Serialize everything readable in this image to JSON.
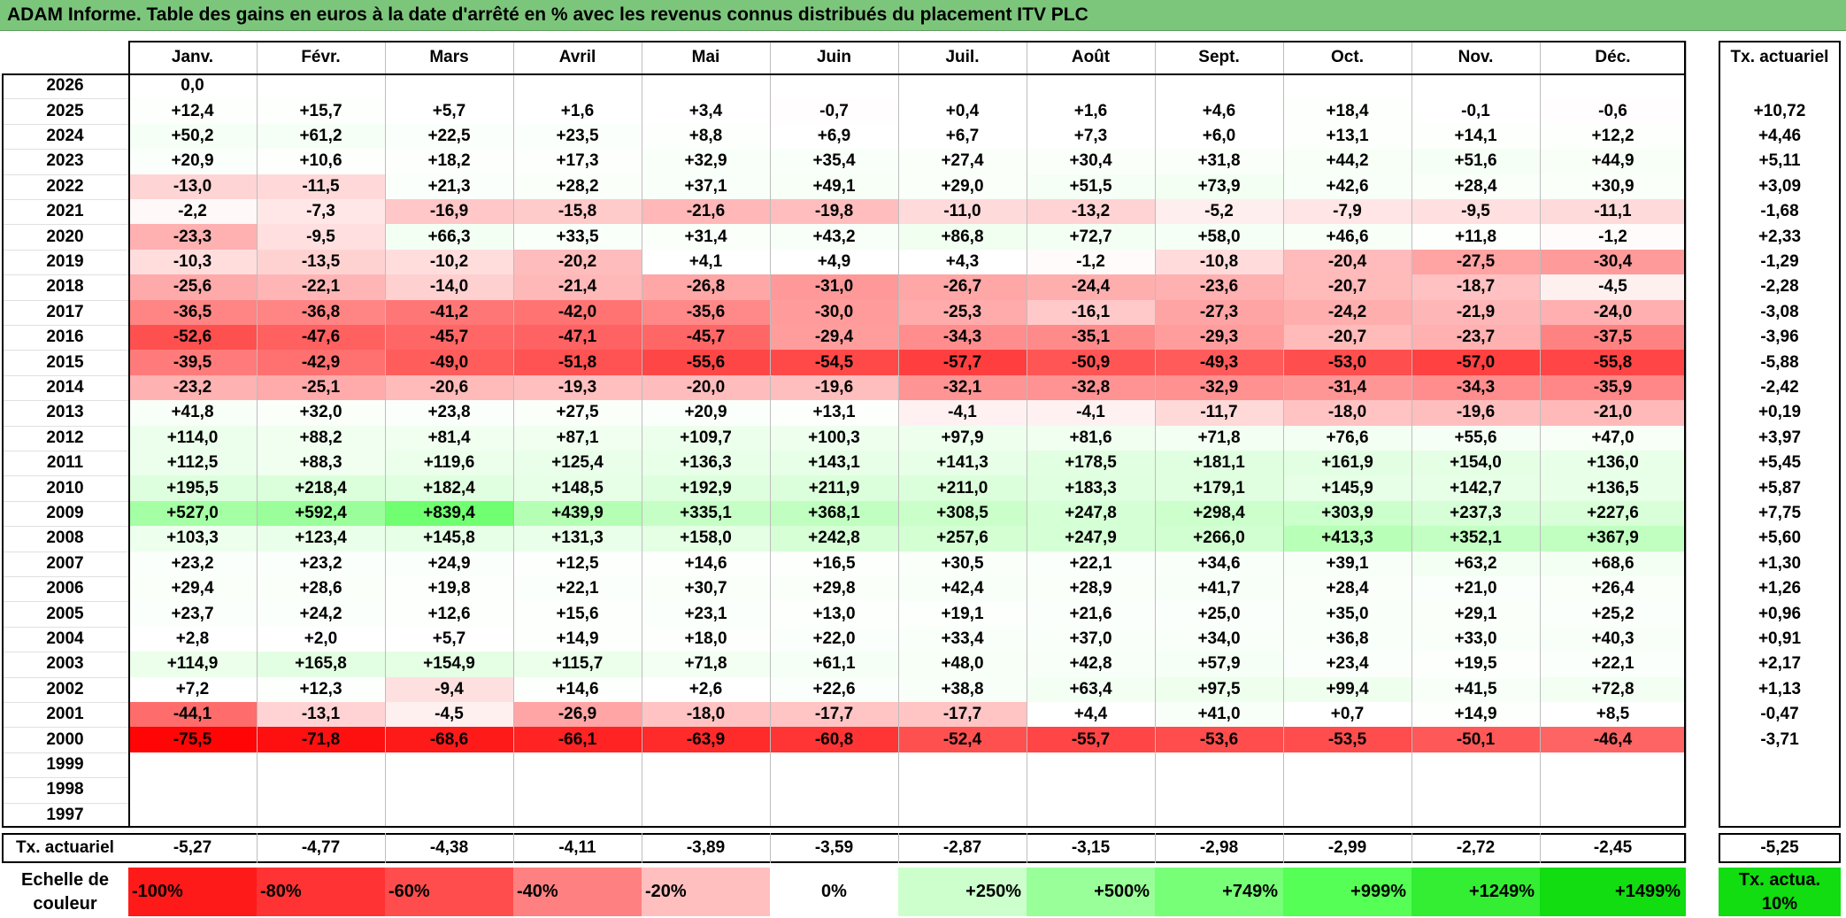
{
  "title": "ADAM Informe. Table des gains en euros à la date d'arrêté en % avec les revenus connus distribués du placement ITV PLC",
  "months": [
    "Janv.",
    "Févr.",
    "Mars",
    "Avril",
    "Mai",
    "Juin",
    "Juil.",
    "Août",
    "Sept.",
    "Oct.",
    "Nov.",
    "Déc."
  ],
  "rate_header": "Tx. actuariel",
  "rows": [
    {
      "year": "2026",
      "values": [
        "0,0",
        "",
        "",
        "",
        "",
        "",
        "",
        "",
        "",
        "",
        "",
        ""
      ],
      "rate": ""
    },
    {
      "year": "2025",
      "values": [
        "+12,4",
        "+15,7",
        "+5,7",
        "+1,6",
        "+3,4",
        "-0,7",
        "+0,4",
        "+1,6",
        "+4,6",
        "+18,4",
        "-0,1",
        "-0,6"
      ],
      "rate": "+10,72"
    },
    {
      "year": "2024",
      "values": [
        "+50,2",
        "+61,2",
        "+22,5",
        "+23,5",
        "+8,8",
        "+6,9",
        "+6,7",
        "+7,3",
        "+6,0",
        "+13,1",
        "+14,1",
        "+12,2"
      ],
      "rate": "+4,46"
    },
    {
      "year": "2023",
      "values": [
        "+20,9",
        "+10,6",
        "+18,2",
        "+17,3",
        "+32,9",
        "+35,4",
        "+27,4",
        "+30,4",
        "+31,8",
        "+44,2",
        "+51,6",
        "+44,9"
      ],
      "rate": "+5,11"
    },
    {
      "year": "2022",
      "values": [
        "-13,0",
        "-11,5",
        "+21,3",
        "+28,2",
        "+37,1",
        "+49,1",
        "+29,0",
        "+51,5",
        "+73,9",
        "+42,6",
        "+28,4",
        "+30,9"
      ],
      "rate": "+3,09"
    },
    {
      "year": "2021",
      "values": [
        "-2,2",
        "-7,3",
        "-16,9",
        "-15,8",
        "-21,6",
        "-19,8",
        "-11,0",
        "-13,2",
        "-5,2",
        "-7,9",
        "-9,5",
        "-11,1"
      ],
      "rate": "-1,68"
    },
    {
      "year": "2020",
      "values": [
        "-23,3",
        "-9,5",
        "+66,3",
        "+33,5",
        "+31,4",
        "+43,2",
        "+86,8",
        "+72,7",
        "+58,0",
        "+46,6",
        "+11,8",
        "-1,2"
      ],
      "rate": "+2,33"
    },
    {
      "year": "2019",
      "values": [
        "-10,3",
        "-13,5",
        "-10,2",
        "-20,2",
        "+4,1",
        "+4,9",
        "+4,3",
        "-1,2",
        "-10,8",
        "-20,4",
        "-27,5",
        "-30,4"
      ],
      "rate": "-1,29"
    },
    {
      "year": "2018",
      "values": [
        "-25,6",
        "-22,1",
        "-14,0",
        "-21,4",
        "-26,8",
        "-31,0",
        "-26,7",
        "-24,4",
        "-23,6",
        "-20,7",
        "-18,7",
        "-4,5"
      ],
      "rate": "-2,28"
    },
    {
      "year": "2017",
      "values": [
        "-36,5",
        "-36,8",
        "-41,2",
        "-42,0",
        "-35,6",
        "-30,0",
        "-25,3",
        "-16,1",
        "-27,3",
        "-24,2",
        "-21,9",
        "-24,0"
      ],
      "rate": "-3,08"
    },
    {
      "year": "2016",
      "values": [
        "-52,6",
        "-47,6",
        "-45,7",
        "-47,1",
        "-45,7",
        "-29,4",
        "-34,3",
        "-35,1",
        "-29,3",
        "-20,7",
        "-23,7",
        "-37,5"
      ],
      "rate": "-3,96"
    },
    {
      "year": "2015",
      "values": [
        "-39,5",
        "-42,9",
        "-49,0",
        "-51,8",
        "-55,6",
        "-54,5",
        "-57,7",
        "-50,9",
        "-49,3",
        "-53,0",
        "-57,0",
        "-55,8"
      ],
      "rate": "-5,88"
    },
    {
      "year": "2014",
      "values": [
        "-23,2",
        "-25,1",
        "-20,6",
        "-19,3",
        "-20,0",
        "-19,6",
        "-32,1",
        "-32,8",
        "-32,9",
        "-31,4",
        "-34,3",
        "-35,9"
      ],
      "rate": "-2,42"
    },
    {
      "year": "2013",
      "values": [
        "+41,8",
        "+32,0",
        "+23,8",
        "+27,5",
        "+20,9",
        "+13,1",
        "-4,1",
        "-4,1",
        "-11,7",
        "-18,0",
        "-19,6",
        "-21,0"
      ],
      "rate": "+0,19"
    },
    {
      "year": "2012",
      "values": [
        "+114,0",
        "+88,2",
        "+81,4",
        "+87,1",
        "+109,7",
        "+100,3",
        "+97,9",
        "+81,6",
        "+71,8",
        "+76,6",
        "+55,6",
        "+47,0"
      ],
      "rate": "+3,97"
    },
    {
      "year": "2011",
      "values": [
        "+112,5",
        "+88,3",
        "+119,6",
        "+125,4",
        "+136,3",
        "+143,1",
        "+141,3",
        "+178,5",
        "+181,1",
        "+161,9",
        "+154,0",
        "+136,0"
      ],
      "rate": "+5,45"
    },
    {
      "year": "2010",
      "values": [
        "+195,5",
        "+218,4",
        "+182,4",
        "+148,5",
        "+192,9",
        "+211,9",
        "+211,0",
        "+183,3",
        "+179,1",
        "+145,9",
        "+142,7",
        "+136,5"
      ],
      "rate": "+5,87"
    },
    {
      "year": "2009",
      "values": [
        "+527,0",
        "+592,4",
        "+839,4",
        "+439,9",
        "+335,1",
        "+368,1",
        "+308,5",
        "+247,8",
        "+298,4",
        "+303,9",
        "+237,3",
        "+227,6"
      ],
      "rate": "+7,75"
    },
    {
      "year": "2008",
      "values": [
        "+103,3",
        "+123,4",
        "+145,8",
        "+131,3",
        "+158,0",
        "+242,8",
        "+257,6",
        "+247,9",
        "+266,0",
        "+413,3",
        "+352,1",
        "+367,9"
      ],
      "rate": "+5,60"
    },
    {
      "year": "2007",
      "values": [
        "+23,2",
        "+23,2",
        "+24,9",
        "+12,5",
        "+14,6",
        "+16,5",
        "+30,5",
        "+22,1",
        "+34,6",
        "+39,1",
        "+63,2",
        "+68,6"
      ],
      "rate": "+1,30"
    },
    {
      "year": "2006",
      "values": [
        "+29,4",
        "+28,6",
        "+19,8",
        "+22,1",
        "+30,7",
        "+29,8",
        "+42,4",
        "+28,9",
        "+41,7",
        "+28,4",
        "+21,0",
        "+26,4"
      ],
      "rate": "+1,26"
    },
    {
      "year": "2005",
      "values": [
        "+23,7",
        "+24,2",
        "+12,6",
        "+15,6",
        "+23,1",
        "+13,0",
        "+19,1",
        "+21,6",
        "+25,0",
        "+35,0",
        "+29,1",
        "+25,2"
      ],
      "rate": "+0,96"
    },
    {
      "year": "2004",
      "values": [
        "+2,8",
        "+2,0",
        "+5,7",
        "+14,9",
        "+18,0",
        "+22,0",
        "+33,4",
        "+37,0",
        "+34,0",
        "+36,8",
        "+33,0",
        "+40,3"
      ],
      "rate": "+0,91"
    },
    {
      "year": "2003",
      "values": [
        "+114,9",
        "+165,8",
        "+154,9",
        "+115,7",
        "+71,8",
        "+61,1",
        "+48,0",
        "+42,8",
        "+57,9",
        "+23,4",
        "+19,5",
        "+22,1"
      ],
      "rate": "+2,17"
    },
    {
      "year": "2002",
      "values": [
        "+7,2",
        "+12,3",
        "-9,4",
        "+14,6",
        "+2,6",
        "+22,6",
        "+38,8",
        "+63,4",
        "+97,5",
        "+99,4",
        "+41,5",
        "+72,8"
      ],
      "rate": "+1,13"
    },
    {
      "year": "2001",
      "values": [
        "-44,1",
        "-13,1",
        "-4,5",
        "-26,9",
        "-18,0",
        "-17,7",
        "-17,7",
        "+4,4",
        "+41,0",
        "+0,7",
        "+14,9",
        "+8,5"
      ],
      "rate": "-0,47"
    },
    {
      "year": "2000",
      "values": [
        "-75,5",
        "-71,8",
        "-68,6",
        "-66,1",
        "-63,9",
        "-60,8",
        "-52,4",
        "-55,7",
        "-53,6",
        "-53,5",
        "-50,1",
        "-46,4"
      ],
      "rate": "-3,71"
    },
    {
      "year": "1999",
      "values": [
        "",
        "",
        "",
        "",
        "",
        "",
        "",
        "",
        "",
        "",
        "",
        ""
      ],
      "rate": ""
    },
    {
      "year": "1998",
      "values": [
        "",
        "",
        "",
        "",
        "",
        "",
        "",
        "",
        "",
        "",
        "",
        ""
      ],
      "rate": ""
    },
    {
      "year": "1997",
      "values": [
        "",
        "",
        "",
        "",
        "",
        "",
        "",
        "",
        "",
        "",
        "",
        ""
      ],
      "rate": ""
    }
  ],
  "footer": {
    "label": "Tx. actuariel",
    "values": [
      "-5,27",
      "-4,77",
      "-4,38",
      "-4,11",
      "-3,89",
      "-3,59",
      "-2,87",
      "-3,15",
      "-2,98",
      "-2,99",
      "-2,72",
      "-2,45"
    ],
    "rate": "-5,25"
  },
  "legend": {
    "label": "Echelle de couleur",
    "items": [
      {
        "text": "-100%",
        "color": "#ff1a1a"
      },
      {
        "text": "-80%",
        "color": "#ff3333"
      },
      {
        "text": "-60%",
        "color": "#ff4d4d"
      },
      {
        "text": "-40%",
        "color": "#ff8080"
      },
      {
        "text": "-20%",
        "color": "#ffbfbf"
      },
      {
        "text": "0%",
        "color": "#ffffff"
      },
      {
        "text": "+250%",
        "color": "#ccffcc"
      },
      {
        "text": "+500%",
        "color": "#99ff99"
      },
      {
        "text": "+749%",
        "color": "#77ff77"
      },
      {
        "text": "+999%",
        "color": "#55ff55"
      },
      {
        "text": "+1249%",
        "color": "#33ee33"
      },
      {
        "text": "+1499%",
        "color": "#11dd11"
      }
    ],
    "rate_label": "Tx. actua. 10%",
    "rate_color": "#11dd11"
  }
}
